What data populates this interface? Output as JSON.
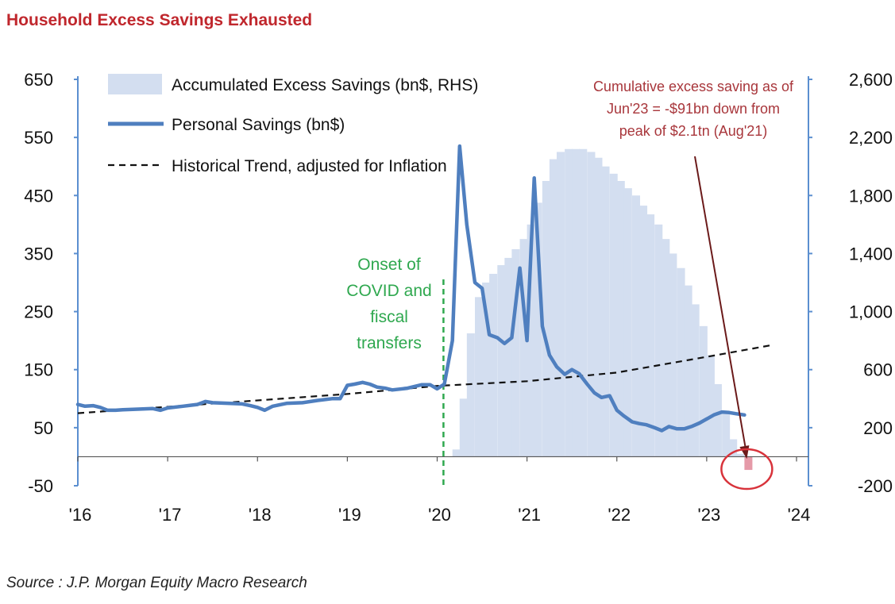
{
  "title": "Household Excess Savings Exhausted",
  "source": "Source : J.P. Morgan Equity Macro Research",
  "colors": {
    "title": "#c0272d",
    "axis": "#5b8fd0",
    "personal_savings": "#4f7fbf",
    "excess_savings": "#d3def0",
    "excess_savings_negative": "#e59aa8",
    "covid_line": "#2fa84f",
    "annotation": "#a8363b",
    "arrow": "#6b1a1a",
    "circle": "#d8333b"
  },
  "chart_data": {
    "type": "line",
    "title": "Household Excess Savings Exhausted",
    "x_tick_labels": [
      "'16",
      "'17",
      "'18",
      "'19",
      "'20",
      "'21",
      "'22",
      "'23",
      "'24"
    ],
    "x_ticks": [
      2016,
      2017,
      2018,
      2019,
      2020,
      2021,
      2022,
      2023,
      2024
    ],
    "xlim": [
      2016,
      2024
    ],
    "y_left": {
      "min": -50,
      "max": 650,
      "ticks": [
        650,
        550,
        450,
        350,
        250,
        150,
        50,
        -50
      ],
      "tick_labels": [
        "650",
        "550",
        "450",
        "350",
        "250",
        "150",
        "50",
        "-50"
      ]
    },
    "y_right": {
      "min": -200,
      "max": 2600,
      "ticks": [
        2600,
        2200,
        1800,
        1400,
        1000,
        600,
        200,
        -200
      ],
      "tick_labels": [
        "2,600",
        "2,200",
        "1,800",
        "1,400",
        "1,000",
        "600",
        "200",
        "-200"
      ]
    },
    "legend": {
      "placement": "top-left",
      "items": [
        {
          "label": "Accumulated Excess Savings (bn$, RHS)",
          "style": "area"
        },
        {
          "label": "Personal Savings (bn$)",
          "style": "line"
        },
        {
          "label": "Historical Trend, adjusted for Inflation",
          "style": "dashed"
        }
      ]
    },
    "series": [
      {
        "name": "Personal Savings (bn$)",
        "axis": "left",
        "x": [
          2016.0,
          2016.08,
          2016.17,
          2016.25,
          2016.33,
          2016.42,
          2016.5,
          2016.67,
          2016.83,
          2016.92,
          2017.0,
          2017.17,
          2017.33,
          2017.42,
          2017.5,
          2017.67,
          2017.83,
          2017.92,
          2018.0,
          2018.08,
          2018.17,
          2018.33,
          2018.5,
          2018.67,
          2018.83,
          2018.92,
          2019.0,
          2019.08,
          2019.17,
          2019.25,
          2019.33,
          2019.42,
          2019.5,
          2019.67,
          2019.83,
          2019.92,
          2020.0,
          2020.08,
          2020.17,
          2020.25,
          2020.33,
          2020.42,
          2020.5,
          2020.58,
          2020.67,
          2020.75,
          2020.83,
          2020.92,
          2021.0,
          2021.08,
          2021.17,
          2021.25,
          2021.33,
          2021.42,
          2021.5,
          2021.58,
          2021.67,
          2021.75,
          2021.83,
          2021.92,
          2022.0,
          2022.08,
          2022.17,
          2022.25,
          2022.33,
          2022.42,
          2022.5,
          2022.58,
          2022.67,
          2022.75,
          2022.83,
          2022.92,
          2023.0,
          2023.08,
          2023.17,
          2023.25,
          2023.33,
          2023.42
        ],
        "values": [
          90,
          87,
          88,
          85,
          80,
          80,
          81,
          82,
          83,
          80,
          84,
          87,
          90,
          95,
          93,
          92,
          91,
          88,
          85,
          80,
          87,
          92,
          93,
          97,
          100,
          100,
          123,
          125,
          128,
          125,
          120,
          118,
          115,
          118,
          124,
          124,
          117,
          125,
          200,
          535,
          400,
          300,
          290,
          210,
          205,
          195,
          205,
          325,
          200,
          480,
          225,
          175,
          155,
          142,
          150,
          143,
          125,
          110,
          102,
          105,
          80,
          70,
          60,
          57,
          55,
          50,
          45,
          52,
          48,
          48,
          52,
          58,
          65,
          72,
          77,
          76,
          74,
          72
        ]
      },
      {
        "name": "Historical Trend, adjusted for Inflation",
        "axis": "left",
        "x": [
          2016.0,
          2019.0,
          2020.0,
          2021.0,
          2022.0,
          2023.0,
          2023.75
        ],
        "values": [
          75,
          108,
          122,
          130,
          145,
          172,
          193
        ]
      },
      {
        "name": "Accumulated Excess Savings (bn$, RHS)",
        "axis": "right",
        "x": [
          2020.17,
          2020.25,
          2020.33,
          2020.42,
          2020.5,
          2020.58,
          2020.67,
          2020.75,
          2020.83,
          2020.92,
          2021.0,
          2021.08,
          2021.17,
          2021.25,
          2021.33,
          2021.42,
          2021.5,
          2021.58,
          2021.67,
          2021.75,
          2021.83,
          2021.92,
          2022.0,
          2022.08,
          2022.17,
          2022.25,
          2022.33,
          2022.42,
          2022.5,
          2022.58,
          2022.67,
          2022.75,
          2022.83,
          2022.92,
          2023.0,
          2023.08,
          2023.17,
          2023.25,
          2023.33,
          2023.42
        ],
        "values": [
          50,
          400,
          850,
          1100,
          1200,
          1260,
          1320,
          1370,
          1430,
          1500,
          1600,
          1750,
          1900,
          2050,
          2100,
          2120,
          2120,
          2120,
          2100,
          2060,
          2000,
          1950,
          1900,
          1850,
          1800,
          1730,
          1670,
          1600,
          1500,
          1400,
          1300,
          1180,
          1050,
          900,
          700,
          500,
          300,
          120,
          20,
          -91
        ]
      }
    ],
    "annotations": [
      {
        "text": [
          "Onset of",
          "COVID and",
          "fiscal",
          "transfers"
        ],
        "x": 2020.0
      },
      {
        "text": [
          "Cumulative excess saving as of",
          "Jun'23 = -$91bn down from",
          "peak of $2.1tn (Aug'21)"
        ],
        "x": 2023.42,
        "y_right": -91
      }
    ]
  }
}
